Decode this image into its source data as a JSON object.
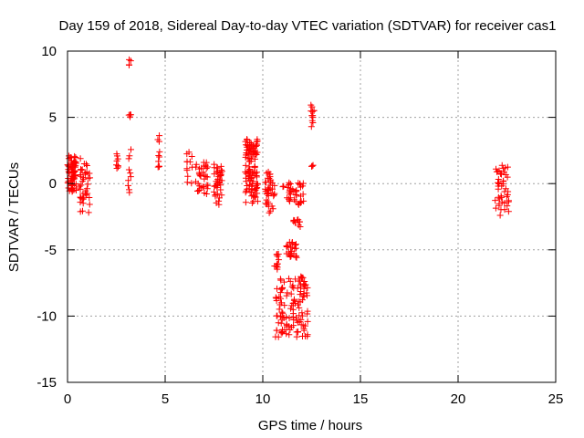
{
  "chart_data": {
    "type": "scatter",
    "title": "Day 159 of 2018, Sidereal Day-to-day VTEC variation (SDTVAR) for receiver cas1",
    "xlabel": "GPS time / hours",
    "ylabel": "SDTVAR / TECUs",
    "xlim": [
      0,
      25
    ],
    "ylim": [
      -15,
      10
    ],
    "xticks": [
      0,
      5,
      10,
      15,
      20,
      25
    ],
    "yticks": [
      -15,
      -10,
      -5,
      0,
      5,
      10
    ],
    "grid": true,
    "marker": "plus",
    "color": "#ff0000",
    "clusters": [
      {
        "x": [
          0.0,
          0.45
        ],
        "y": [
          -0.6,
          2.1
        ],
        "n": 70
      },
      {
        "x": [
          0.6,
          1.15
        ],
        "y": [
          -2.2,
          1.9
        ],
        "n": 40
      },
      {
        "x": [
          2.5,
          2.6
        ],
        "y": [
          0.8,
          2.4
        ],
        "n": 8
      },
      {
        "x": [
          3.1,
          3.25
        ],
        "y": [
          -1.0,
          2.6
        ],
        "n": 10
      },
      {
        "x": [
          3.1,
          3.25
        ],
        "y": [
          4.9,
          5.2
        ],
        "n": 4
      },
      {
        "x": [
          3.15,
          3.25
        ],
        "y": [
          8.8,
          9.4
        ],
        "n": 4
      },
      {
        "x": [
          4.6,
          4.75
        ],
        "y": [
          1.0,
          3.8
        ],
        "n": 10
      },
      {
        "x": [
          6.1,
          6.4
        ],
        "y": [
          0.0,
          4.2
        ],
        "n": 12
      },
      {
        "x": [
          6.5,
          7.2
        ],
        "y": [
          -0.8,
          1.8
        ],
        "n": 35
      },
      {
        "x": [
          7.5,
          7.95
        ],
        "y": [
          -1.6,
          1.6
        ],
        "n": 40
      },
      {
        "x": [
          9.1,
          9.75
        ],
        "y": [
          -1.5,
          3.4
        ],
        "n": 110
      },
      {
        "x": [
          10.1,
          10.6
        ],
        "y": [
          -2.3,
          1.0
        ],
        "n": 40
      },
      {
        "x": [
          10.6,
          10.85
        ],
        "y": [
          -6.6,
          -5.2
        ],
        "n": 12
      },
      {
        "x": [
          10.65,
          12.3
        ],
        "y": [
          -11.6,
          -7.0
        ],
        "n": 120
      },
      {
        "x": [
          11.2,
          11.75
        ],
        "y": [
          -5.6,
          -4.4
        ],
        "n": 25
      },
      {
        "x": [
          11.5,
          12.0
        ],
        "y": [
          -3.3,
          -2.7
        ],
        "n": 10
      },
      {
        "x": [
          11.0,
          12.1
        ],
        "y": [
          -1.6,
          0.3
        ],
        "n": 40
      },
      {
        "x": [
          12.45,
          12.65
        ],
        "y": [
          4.0,
          6.5
        ],
        "n": 12
      },
      {
        "x": [
          12.45,
          12.65
        ],
        "y": [
          1.2,
          1.4
        ],
        "n": 3
      },
      {
        "x": [
          21.9,
          22.6
        ],
        "y": [
          -2.4,
          1.6
        ],
        "n": 45
      }
    ]
  }
}
